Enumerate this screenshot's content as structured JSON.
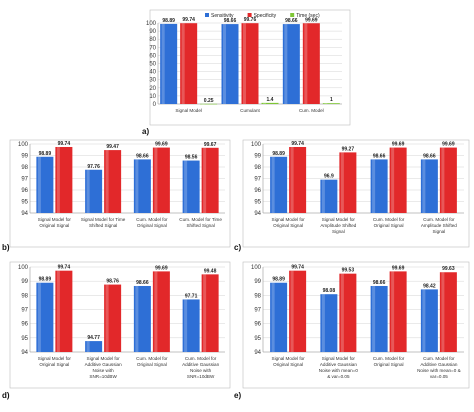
{
  "colors": {
    "Sensitivity": "#2e6fd6",
    "Specificity": "#e2282a",
    "Time (sec)": "#7ec635"
  },
  "chart_data": [
    {
      "id": "a",
      "type": "bar",
      "panel_label": "a)",
      "categories": [
        "Signal Model",
        "Cumulant",
        "Cum. Model"
      ],
      "series": [
        {
          "name": "Sensitivity",
          "values": [
            98.89,
            98.66,
            98.66
          ]
        },
        {
          "name": "Specificity",
          "values": [
            99.74,
            99.76,
            99.69
          ]
        },
        {
          "name": "Time (sec)",
          "values": [
            0.25,
            1.4,
            1
          ]
        }
      ],
      "value_labels": [
        [
          "98.89",
          "98.66",
          "98.66"
        ],
        [
          "99.74",
          "99.76",
          "99.69"
        ],
        [
          "0.25",
          "1.4",
          "1"
        ]
      ],
      "ylim": [
        0,
        100
      ],
      "yticks": [
        0,
        10,
        20,
        30,
        40,
        50,
        60,
        70,
        80,
        90,
        100
      ],
      "legend": "top",
      "grid": true
    },
    {
      "id": "b",
      "type": "bar",
      "panel_label": "b)",
      "categories": [
        [
          "Signal Model for",
          "Original Signal"
        ],
        [
          "Signal Model for Time",
          "Shifted Signal"
        ],
        [
          "Cum. Model for",
          "Original Signal"
        ],
        [
          "Cum. Model for Time",
          "Shifted Signal"
        ]
      ],
      "series": [
        {
          "name": "Sensitivity",
          "values": [
            98.89,
            97.76,
            98.66,
            98.56
          ]
        },
        {
          "name": "Specificity",
          "values": [
            99.74,
            99.47,
            99.69,
            99.67
          ]
        }
      ],
      "value_labels": [
        [
          "98.89",
          "97.76",
          "98.66",
          "98.56"
        ],
        [
          "99.74",
          "99.47",
          "99.69",
          "99.67"
        ]
      ],
      "ylim": [
        94,
        100
      ],
      "yticks": [
        94,
        95,
        96,
        97,
        98,
        99,
        100
      ],
      "grid": true
    },
    {
      "id": "c",
      "type": "bar",
      "panel_label": "c)",
      "categories": [
        [
          "Signal Model for",
          "Original Signal"
        ],
        [
          "Signal Model for",
          "Amplitude Shifted",
          "Signal"
        ],
        [
          "Cum. Model for",
          "Original Signal"
        ],
        [
          "Cum. Model for",
          "Amplitude Shifted",
          "Signal"
        ]
      ],
      "series": [
        {
          "name": "Sensitivity",
          "values": [
            98.89,
            96.9,
            98.66,
            98.66
          ]
        },
        {
          "name": "Specificity",
          "values": [
            99.74,
            99.27,
            99.69,
            99.69
          ]
        }
      ],
      "value_labels": [
        [
          "98.89",
          "96.9",
          "98.66",
          "98.66"
        ],
        [
          "99.74",
          "99.27",
          "99.69",
          "99.69"
        ]
      ],
      "ylim": [
        94,
        100
      ],
      "yticks": [
        94,
        95,
        96,
        97,
        98,
        99,
        100
      ],
      "grid": true
    },
    {
      "id": "d",
      "type": "bar",
      "panel_label": "d)",
      "categories": [
        [
          "Signal Model for",
          "Original Signal"
        ],
        [
          "Signal Model for",
          "Additive Gaussian",
          "Noise with",
          "SNR=10dBW"
        ],
        [
          "Cum. Model for",
          "Original Signal"
        ],
        [
          "Cum. Model for",
          "Additive Gaussian",
          "Noise with",
          "SNR=10dBW"
        ]
      ],
      "series": [
        {
          "name": "Sensitivity",
          "values": [
            98.89,
            94.77,
            98.66,
            97.71
          ]
        },
        {
          "name": "Specificity",
          "values": [
            99.74,
            98.76,
            99.69,
            99.48
          ]
        }
      ],
      "value_labels": [
        [
          "98.89",
          "94.77",
          "98.66",
          "97.71"
        ],
        [
          "99.74",
          "98.76",
          "99.69",
          "99.48"
        ]
      ],
      "ylim": [
        94,
        100
      ],
      "yticks": [
        94,
        95,
        96,
        97,
        98,
        99,
        100
      ],
      "grid": true
    },
    {
      "id": "e",
      "type": "bar",
      "panel_label": "e)",
      "categories": [
        [
          "Signal Model for",
          "Original Signal"
        ],
        [
          "Signal Model for",
          "Additive Gaussian",
          "Noise with mean=0",
          "& var=0.05"
        ],
        [
          "Cum. Model for",
          "Original Signal"
        ],
        [
          "Cum. Model for",
          "Additive Gaussian",
          "Noise with mean=0 &",
          "var=0.05"
        ]
      ],
      "series": [
        {
          "name": "Sensitivity",
          "values": [
            98.89,
            98.08,
            98.66,
            98.42
          ]
        },
        {
          "name": "Specificity",
          "values": [
            99.74,
            99.53,
            99.69,
            99.63
          ]
        }
      ],
      "value_labels": [
        [
          "98.89",
          "98.08",
          "98.66",
          "98.42"
        ],
        [
          "99.74",
          "99.53",
          "99.69",
          "99.63"
        ]
      ],
      "ylim": [
        94,
        100
      ],
      "yticks": [
        94,
        95,
        96,
        97,
        98,
        99,
        100
      ],
      "grid": true
    }
  ]
}
